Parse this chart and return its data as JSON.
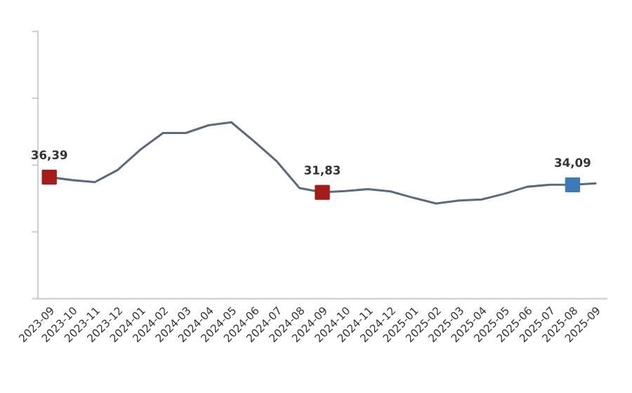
{
  "chart_data": {
    "type": "line",
    "categories": [
      "2023-09",
      "2023-10",
      "2023-11",
      "2023-12",
      "2024-01",
      "2024-02",
      "2024-03",
      "2024-04",
      "2024-05",
      "2024-06",
      "2024-07",
      "2024-08",
      "2024-09",
      "2024-10",
      "2024-11",
      "2024-12",
      "2025-01",
      "2025-02",
      "2025-03",
      "2025-04",
      "2025-05",
      "2025-06",
      "2025-07",
      "2025-08",
      "2025-09"
    ],
    "series": [
      {
        "color": "#5a6b7d",
        "values": [
          36.39,
          35.5,
          34.9,
          38.5,
          44.6,
          49.6,
          49.6,
          51.9,
          52.8,
          47.1,
          41.1,
          33.1,
          31.83,
          32.2,
          32.8,
          32.1,
          30.2,
          28.5,
          29.4,
          29.7,
          31.4,
          33.5,
          34.1,
          34.09,
          34.5
        ]
      },
      {
        "type": "scatter",
        "marker": "square",
        "values": [
          36.39,
          null,
          null,
          null,
          null,
          null,
          null,
          null,
          null,
          null,
          null,
          null,
          31.83,
          null,
          null,
          null,
          null,
          null,
          null,
          null,
          null,
          null,
          null,
          34.09,
          null
        ],
        "colors": [
          "#a51c1c",
          null,
          null,
          null,
          null,
          null,
          null,
          null,
          null,
          null,
          null,
          null,
          "#a51c1c",
          null,
          null,
          null,
          null,
          null,
          null,
          null,
          null,
          null,
          null,
          "#3d7ab8",
          null
        ],
        "value_labels": [
          "36,39",
          null,
          null,
          null,
          null,
          null,
          null,
          null,
          null,
          null,
          null,
          null,
          "31,83",
          null,
          null,
          null,
          null,
          null,
          null,
          null,
          null,
          null,
          null,
          "34,09",
          null
        ]
      }
    ],
    "ylim": [
      0,
      80
    ],
    "yticks": [
      {
        "value": 0,
        "label": null
      },
      {
        "value": 20,
        "label": null
      },
      {
        "value": 40,
        "label": null
      },
      {
        "value": 60,
        "label": null
      },
      {
        "value": 80,
        "label": null
      }
    ],
    "tick_labels": "x",
    "grid": false,
    "legend": false
  }
}
